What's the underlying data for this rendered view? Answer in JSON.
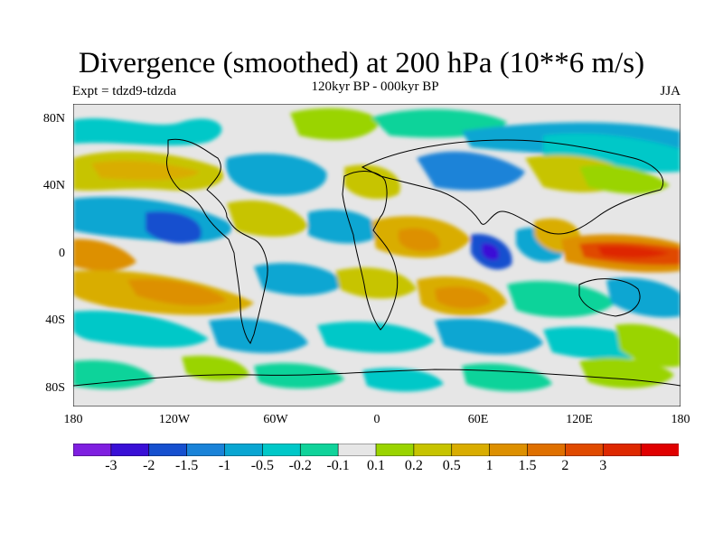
{
  "header": {
    "title": "Divergence (smoothed) at 200 hPa (10**6 m/s)",
    "subtitle": "120kyr BP - 000kyr BP",
    "left_label": "Expt = tdzd9-tdzda",
    "right_label": "JJA"
  },
  "axes": {
    "y_labels": [
      "80N",
      "40N",
      "0",
      "40S",
      "80S"
    ],
    "x_labels": [
      "180",
      "120W",
      "60W",
      "0",
      "60E",
      "120E",
      "180"
    ]
  },
  "colorbar": {
    "colors": [
      "#7f1fe0",
      "#3a10d6",
      "#1650cf",
      "#1a83d8",
      "#0aa6d2",
      "#00c8c8",
      "#10d39a",
      "#e6e6e6",
      "#9ad400",
      "#c7c400",
      "#d9ad00",
      "#dd9000",
      "#df7000",
      "#e04a00",
      "#de2800",
      "#e00000"
    ],
    "labels": [
      "-3",
      "-2",
      "-1.5",
      "-1",
      "-0.5",
      "-0.2",
      "-0.1",
      "0.1",
      "0.2",
      "0.5",
      "1",
      "1.5",
      "2",
      "3"
    ]
  }
}
